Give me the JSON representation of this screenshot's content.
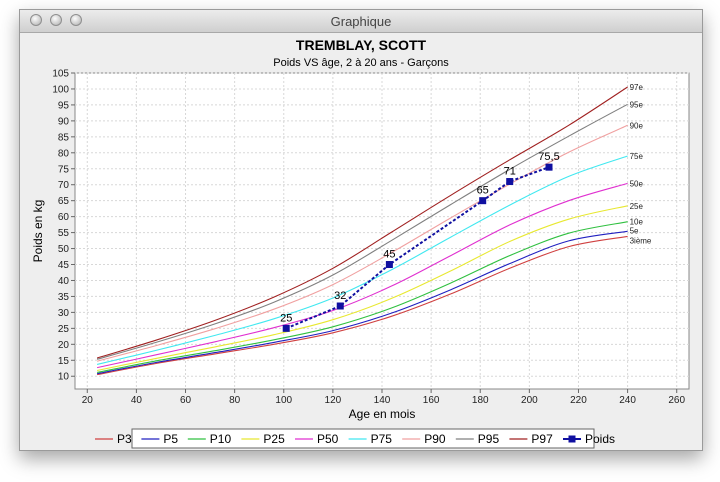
{
  "window": {
    "title": "Graphique"
  },
  "chart_data": {
    "type": "line",
    "title": "TREMBLAY, SCOTT",
    "subtitle": "Poids VS âge, 2 à 20 ans - Garçons",
    "xlabel": "Age en mois",
    "ylabel": "Poids en kg",
    "xlim": [
      15,
      265
    ],
    "ylim": [
      6,
      105
    ],
    "x_ticks": [
      20,
      40,
      60,
      80,
      100,
      120,
      140,
      160,
      180,
      200,
      220,
      240,
      260
    ],
    "y_ticks": [
      10,
      15,
      20,
      25,
      30,
      35,
      40,
      45,
      50,
      55,
      60,
      65,
      70,
      75,
      80,
      85,
      90,
      95,
      100,
      105
    ],
    "grid": true,
    "legend_position": "bottom",
    "percentile_x": [
      24,
      48,
      72,
      96,
      120,
      144,
      168,
      192,
      216,
      240
    ],
    "series": [
      {
        "name": "P3",
        "end_label": "3ième",
        "color": "#d04040",
        "values": [
          10.5,
          14.0,
          17.0,
          20.0,
          23.6,
          28.8,
          35.8,
          43.8,
          50.6,
          53.8
        ]
      },
      {
        "name": "P5",
        "end_label": "5e",
        "color": "#2020c0",
        "values": [
          10.8,
          14.3,
          17.4,
          20.6,
          24.3,
          29.8,
          37.1,
          45.3,
          52.4,
          55.4
        ]
      },
      {
        "name": "P10",
        "end_label": "10e",
        "color": "#30c040",
        "values": [
          11.2,
          14.8,
          18.0,
          21.4,
          25.5,
          31.4,
          39.2,
          47.8,
          54.8,
          58.4
        ]
      },
      {
        "name": "P25",
        "end_label": "25e",
        "color": "#e8e830",
        "values": [
          11.8,
          15.6,
          19.2,
          23.0,
          27.7,
          34.4,
          43.0,
          52.2,
          59.2,
          63.4
        ]
      },
      {
        "name": "P50",
        "end_label": "50e",
        "color": "#e030d0",
        "values": [
          12.7,
          16.7,
          20.8,
          25.2,
          30.6,
          38.3,
          47.8,
          57.4,
          65.0,
          70.4
        ]
      },
      {
        "name": "P75",
        "end_label": "75e",
        "color": "#40e8f0",
        "values": [
          13.7,
          18.1,
          22.8,
          28.0,
          34.5,
          43.4,
          53.6,
          63.6,
          72.6,
          79.0
        ]
      },
      {
        "name": "P90",
        "end_label": "90e",
        "color": "#f0a0a0",
        "values": [
          14.7,
          19.6,
          24.9,
          31.0,
          38.7,
          48.8,
          59.6,
          70.2,
          80.2,
          88.6
        ]
      },
      {
        "name": "P95",
        "end_label": "95e",
        "color": "#808080",
        "values": [
          15.3,
          20.6,
          26.4,
          33.2,
          41.7,
          52.6,
          63.8,
          74.8,
          85.2,
          95.2
        ]
      },
      {
        "name": "P97",
        "end_label": "97e",
        "color": "#a02020",
        "values": [
          15.7,
          21.3,
          27.5,
          34.8,
          43.8,
          55.2,
          66.7,
          77.8,
          88.6,
          100.6
        ]
      }
    ],
    "patient": {
      "name": "Poids",
      "color": "#1010a0",
      "x": [
        101,
        123,
        143,
        181,
        192,
        208
      ],
      "y": [
        25,
        32,
        45,
        65,
        71,
        75.5
      ],
      "labels": [
        "25",
        "32",
        "45",
        "65",
        "71",
        "75,5"
      ]
    }
  }
}
